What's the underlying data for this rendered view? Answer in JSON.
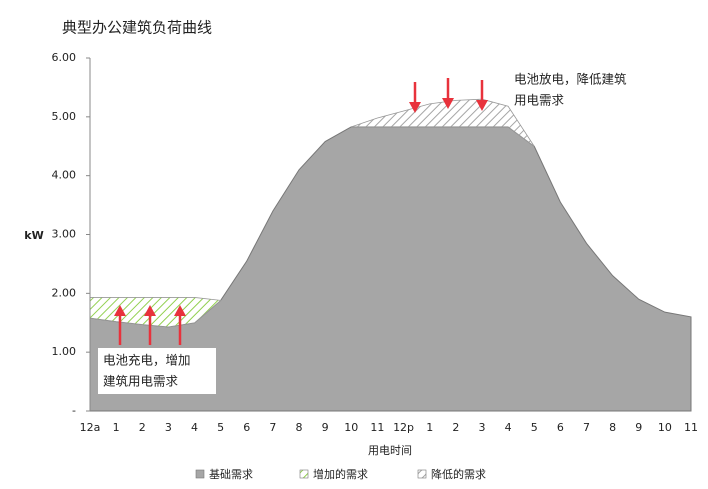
{
  "chart_data": {
    "type": "stacked-area",
    "title": "典型办公建筑负荷曲线",
    "x_label": "用电时间",
    "y_label": "kW",
    "categories": [
      "12a",
      "1",
      "2",
      "3",
      "4",
      "5",
      "6",
      "7",
      "8",
      "9",
      "10",
      "11",
      "12p",
      "1",
      "2",
      "3",
      "4",
      "5",
      "6",
      "7",
      "8",
      "9",
      "10",
      "11"
    ],
    "series": [
      {
        "name": "基础需求",
        "color": "#a6a6a6",
        "fill": "solid",
        "values": [
          1.58,
          1.52,
          1.47,
          1.43,
          1.5,
          1.88,
          2.55,
          3.4,
          4.1,
          4.58,
          4.83,
          4.83,
          4.83,
          4.83,
          4.83,
          4.83,
          4.83,
          4.5,
          3.55,
          2.85,
          2.3,
          1.9,
          1.68,
          1.6
        ]
      },
      {
        "name": "增加的需求",
        "color": "#92d050",
        "fill": "hatch",
        "values": [
          0.35,
          0.41,
          0.46,
          0.5,
          0.43,
          0,
          null,
          null,
          null,
          null,
          null,
          null,
          null,
          null,
          null,
          null,
          null,
          null,
          null,
          null,
          null,
          null,
          null,
          null
        ]
      },
      {
        "name": "降低的需求",
        "color": "#a6a6a6",
        "fill": "hatch",
        "values": [
          null,
          null,
          null,
          null,
          null,
          null,
          null,
          null,
          null,
          null,
          0,
          0.15,
          0.27,
          0.39,
          0.45,
          0.47,
          0.35,
          0,
          null,
          null,
          null,
          null,
          null,
          null
        ]
      }
    ],
    "ylim": [
      0,
      6
    ],
    "yticks": [
      {
        "value": 0,
        "label": "-"
      },
      {
        "value": 1,
        "label": "1.00"
      },
      {
        "value": 2,
        "label": "2.00"
      },
      {
        "value": 3,
        "label": "3.00"
      },
      {
        "value": 4,
        "label": "4.00"
      },
      {
        "value": 5,
        "label": "5.00"
      },
      {
        "value": 6,
        "label": "6.00"
      }
    ],
    "annotations": [
      {
        "lines": [
          "电池放电，降低建筑",
          "用电需求"
        ]
      },
      {
        "lines": [
          "电池充电，增加",
          "建筑用电需求"
        ]
      }
    ],
    "legend": "bottom"
  }
}
